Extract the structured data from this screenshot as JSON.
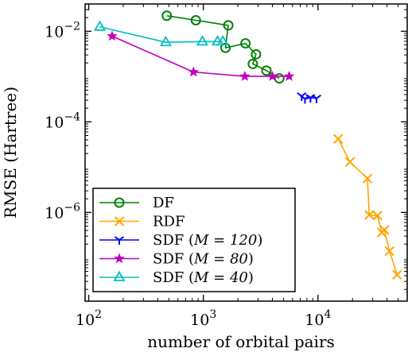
{
  "chart_data": {
    "type": "line",
    "xlabel": "number of orbital pairs",
    "ylabel": "RMSE (Hartree)",
    "x_scale": "log",
    "y_scale": "log",
    "xlim": [
      93,
      60000
    ],
    "ylim": [
      1.1e-08,
      0.04
    ],
    "x_ticks": [
      {
        "value": 100,
        "base": "10",
        "exp": "2"
      },
      {
        "value": 1000,
        "base": "10",
        "exp": "3"
      },
      {
        "value": 10000,
        "base": "10",
        "exp": "4"
      }
    ],
    "y_ticks": [
      {
        "value": 1e-06,
        "base": "10",
        "exp": "−6"
      },
      {
        "value": 0.0001,
        "base": "10",
        "exp": "−4"
      },
      {
        "value": 0.01,
        "base": "10",
        "exp": "−2"
      }
    ],
    "grid": false,
    "legend_position": "bottom-left",
    "series": [
      {
        "name": "DF",
        "legend_text": "DF",
        "color": "#008000",
        "marker": "circle-open",
        "x": [
          480,
          860,
          1650,
          1560,
          2330,
          2880,
          2700,
          3550,
          4600
        ],
        "y": [
          0.022,
          0.0175,
          0.0135,
          0.0043,
          0.0054,
          0.0031,
          0.0019,
          0.00135,
          0.00091
        ]
      },
      {
        "name": "RDF",
        "legend_text": "RDF",
        "color": "#FFA500",
        "marker": "x",
        "x": [
          15000,
          19000,
          27000,
          28000,
          33000,
          36000,
          38000,
          42000,
          49000
        ],
        "y": [
          4.2e-05,
          1.3e-05,
          5.6e-06,
          8.8e-07,
          8.5e-07,
          3.6e-07,
          4.1e-07,
          1.4e-07,
          4.2e-08
        ]
      },
      {
        "name": "SDF (M = 120)",
        "legend_text": "SDF (",
        "legend_math": "M = 120",
        "legend_close": ")",
        "color": "#0000FF",
        "marker": "tri-down",
        "x": [
          7200,
          7700,
          8600,
          9700
        ],
        "y": [
          0.00037,
          0.00032,
          0.00034,
          0.00033
        ]
      },
      {
        "name": "SDF (M = 80)",
        "legend_text": "SDF (",
        "legend_math": "M = 80",
        "legend_close": ")",
        "color": "#BF00BF",
        "marker": "star",
        "x": [
          160,
          820,
          2300,
          4000,
          5600
        ],
        "y": [
          0.0078,
          0.00126,
          0.00101,
          0.00101,
          0.00101
        ]
      },
      {
        "name": "SDF (M = 40)",
        "legend_text": "SDF (",
        "legend_math": "M = 40",
        "legend_close": ")",
        "color": "#00BFBF",
        "marker": "triangle-open",
        "x": [
          125,
          470,
          980,
          1330,
          1480
        ],
        "y": [
          0.0125,
          0.0057,
          0.0059,
          0.0059,
          0.0059
        ]
      }
    ]
  }
}
